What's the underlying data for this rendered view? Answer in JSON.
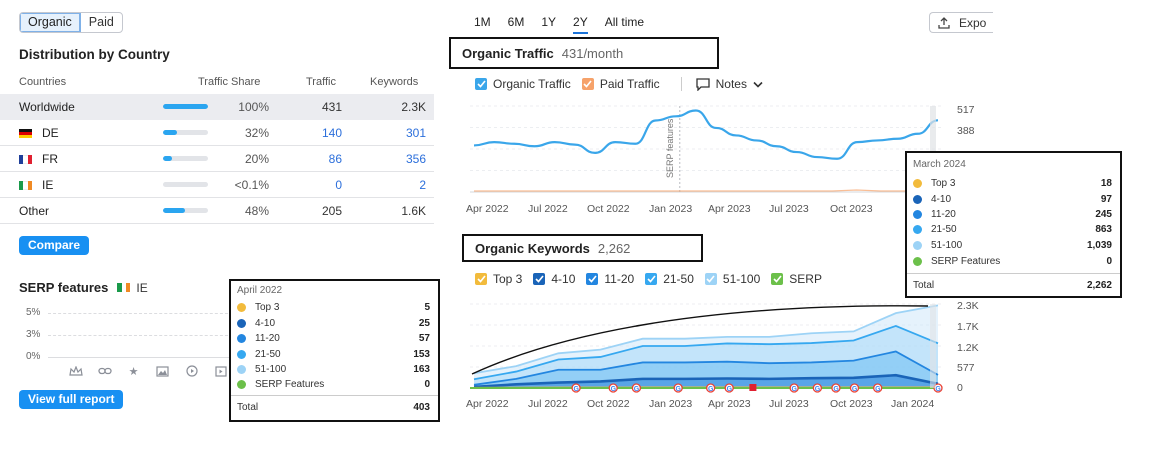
{
  "toggle": {
    "organic": "Organic",
    "paid": "Paid"
  },
  "distribution": {
    "title": "Distribution by Country",
    "headers": {
      "countries": "Countries",
      "share": "Traffic Share",
      "traffic": "Traffic",
      "keywords": "Keywords"
    },
    "rows": [
      {
        "name": "Worldwide",
        "share": "100%",
        "share_value": 100,
        "traffic": "431",
        "keywords": "2.3K"
      },
      {
        "name": "DE",
        "share": "32%",
        "share_value": 32,
        "traffic": "140",
        "keywords": "301"
      },
      {
        "name": "FR",
        "share": "20%",
        "share_value": 20,
        "traffic": "86",
        "keywords": "356"
      },
      {
        "name": "IE",
        "share": "<0.1%",
        "share_value": 0.1,
        "traffic": "0",
        "keywords": "2"
      },
      {
        "name": "Other",
        "share": "48%",
        "share_value": 48,
        "traffic": "205",
        "keywords": "1.6K"
      }
    ],
    "compare_label": "Compare"
  },
  "serp": {
    "title": "SERP features",
    "country": "IE",
    "y_ticks": [
      "5%",
      "3%",
      "0%"
    ],
    "view_full_report": "View full report",
    "icons": [
      "crown-icon",
      "link-icon",
      "star-icon",
      "image-icon",
      "video-icon",
      "play-box-icon"
    ]
  },
  "tooltip_april": {
    "title": "April 2022",
    "items": [
      {
        "label": "Top 3",
        "value": "5",
        "color": "#f2bb3c"
      },
      {
        "label": "4-10",
        "value": "25",
        "color": "#1a64b8"
      },
      {
        "label": "11-20",
        "value": "57",
        "color": "#2386e0"
      },
      {
        "label": "21-50",
        "value": "153",
        "color": "#36a8f0"
      },
      {
        "label": "51-100",
        "value": "163",
        "color": "#9dd3f6"
      },
      {
        "label": "SERP Features",
        "value": "0",
        "color": "#6cc04a"
      }
    ],
    "total_label": "Total",
    "total_value": "403"
  },
  "tooltip_march": {
    "title": "March 2024",
    "items": [
      {
        "label": "Top 3",
        "value": "18",
        "color": "#f2bb3c"
      },
      {
        "label": "4-10",
        "value": "97",
        "color": "#1a64b8"
      },
      {
        "label": "11-20",
        "value": "245",
        "color": "#2386e0"
      },
      {
        "label": "21-50",
        "value": "863",
        "color": "#36a8f0"
      },
      {
        "label": "51-100",
        "value": "1,039",
        "color": "#9dd3f6"
      },
      {
        "label": "SERP Features",
        "value": "0",
        "color": "#6cc04a"
      }
    ],
    "total_label": "Total",
    "total_value": "2,262"
  },
  "ranges": [
    "1M",
    "6M",
    "1Y",
    "2Y",
    "All time"
  ],
  "export_label": "Expo",
  "organic_traffic": {
    "title": "Organic Traffic",
    "value": "431/month",
    "legend": {
      "organic": "Organic Traffic",
      "paid": "Paid Traffic",
      "notes": "Notes"
    },
    "annotation": "SERP features",
    "colors": {
      "organic": "#3aa6ea",
      "paid": "#f6a26a"
    }
  },
  "organic_keywords": {
    "title": "Organic Keywords",
    "value": "2,262",
    "legend": [
      "Top 3",
      "4-10",
      "11-20",
      "21-50",
      "51-100",
      "SERP"
    ],
    "legend_colors": [
      "#f2bb3c",
      "#1a64b8",
      "#2386e0",
      "#36a8f0",
      "#9dd3f6",
      "#6cc04a"
    ]
  },
  "chart_data": [
    {
      "type": "line",
      "title": "Organic Traffic",
      "x_ticks": [
        "Apr 2022",
        "Jul 2022",
        "Oct 2022",
        "Jan 2023",
        "Apr 2023",
        "Jul 2023",
        "Oct 2023"
      ],
      "y_ticks": [
        "517",
        "388"
      ],
      "series": [
        {
          "name": "Organic Traffic",
          "x": [
            "Apr 2022",
            "May 2022",
            "Jun 2022",
            "Jul 2022",
            "Aug 2022",
            "Sep 2022",
            "Oct 2022",
            "Nov 2022",
            "Dec 2022",
            "Jan 2023",
            "Feb 2023",
            "Mar 2023",
            "Apr 2023",
            "May 2023",
            "Jun 2023",
            "Jul 2023",
            "Aug 2023",
            "Sep 2023",
            "Oct 2023",
            "Nov 2023",
            "Dec 2023",
            "Jan 2024",
            "Feb 2024",
            "Mar 2024"
          ],
          "values": [
            280,
            300,
            290,
            275,
            300,
            285,
            235,
            300,
            290,
            430,
            455,
            490,
            385,
            340,
            310,
            275,
            240,
            210,
            200,
            300,
            310,
            320,
            350,
            431
          ]
        },
        {
          "name": "Paid Traffic",
          "x": [
            "Apr 2022",
            "Jan 2023",
            "Jul 2023",
            "Mar 2024"
          ],
          "values": [
            0,
            0,
            8,
            0
          ]
        }
      ],
      "ylim": [
        0,
        517
      ]
    },
    {
      "type": "area",
      "title": "Organic Keywords",
      "x_ticks": [
        "Apr 2022",
        "Jul 2022",
        "Oct 2022",
        "Jan 2023",
        "Apr 2023",
        "Jul 2023",
        "Oct 2023",
        "Jan 2024"
      ],
      "y_ticks": [
        "2.3K",
        "1.7K",
        "1.2K",
        "577",
        "0"
      ],
      "x": [
        "Apr 2022",
        "Jun 2022",
        "Aug 2022",
        "Oct 2022",
        "Dec 2022",
        "Feb 2023",
        "Apr 2023",
        "Jun 2023",
        "Aug 2023",
        "Oct 2023",
        "Dec 2023",
        "Mar 2024"
      ],
      "series": [
        {
          "name": "51-100",
          "values": [
            403,
            600,
            950,
            1050,
            1350,
            1350,
            1400,
            1400,
            1500,
            1550,
            2050,
            2262
          ]
        },
        {
          "name": "21-50",
          "values": [
            240,
            450,
            780,
            850,
            1150,
            1150,
            1220,
            1200,
            1230,
            1300,
            1700,
            1223
          ]
        },
        {
          "name": "11-20",
          "values": [
            87,
            250,
            500,
            500,
            700,
            700,
            720,
            680,
            700,
            750,
            1000,
            360
          ]
        },
        {
          "name": "4-10",
          "values": [
            30,
            100,
            150,
            180,
            250,
            250,
            260,
            250,
            270,
            280,
            350,
            115
          ]
        },
        {
          "name": "Top 3",
          "values": [
            5,
            10,
            12,
            12,
            15,
            15,
            15,
            15,
            15,
            16,
            18,
            18
          ]
        }
      ],
      "ylim": [
        0,
        2300
      ]
    }
  ]
}
